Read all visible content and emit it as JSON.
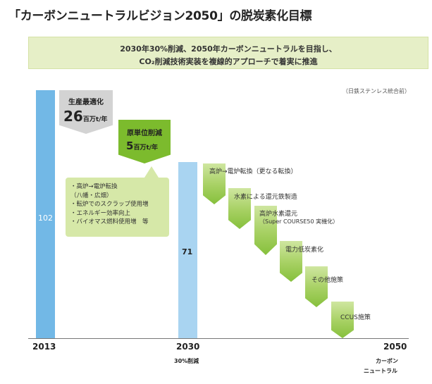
{
  "title": "「カーボンニュートラルビジョン2050」の脱炭素化目標",
  "banner": {
    "line1": "2030年30%削減、2050年カーボンニュートラルを目指し、",
    "line2": "CO₂削減技術実装を複線的アプローチで着実に推進"
  },
  "source_note": "（日鉄ステンレス統合前）",
  "bars": {
    "y2013": {
      "value": "102"
    },
    "y2030": {
      "value": "71"
    }
  },
  "axis": {
    "x2013": "2013",
    "x2030": "2030",
    "x2030_sub": "30%削減",
    "x2050": "2050",
    "x2050_sub1": "カーボン",
    "x2050_sub2": "ニュートラル"
  },
  "callouts": {
    "production": {
      "title": "生産最適化",
      "value": "26",
      "unit": "百万t/年"
    },
    "unit_reduction": {
      "title": "原単位削減",
      "value": "5",
      "unit": "百万t/年"
    }
  },
  "measures": [
    "・高炉→電炉転換",
    "（八幡・広畑）",
    "・転炉でのスクラップ使用増",
    "・エネルギー効率向上",
    "・バイオマス燃料使用増　等"
  ],
  "steps": [
    {
      "label": "高炉→電炉転換（更なる転換）",
      "sub": ""
    },
    {
      "label": "水素による還元鉄製造",
      "sub": ""
    },
    {
      "label": "高炉水素還元",
      "sub": "（Super COURSE50 実機化）"
    },
    {
      "label": "電力低炭素化",
      "sub": ""
    },
    {
      "label": "その他施策",
      "sub": ""
    },
    {
      "label": "CCUS施策",
      "sub": ""
    }
  ],
  "colors": {
    "bar_2013": "#72b8e6",
    "bar_2030": "#a9d4f1",
    "accent_green": "#7cbb2d",
    "callout_gray": "#d3d3d3",
    "banner_bg": "#e6efc7"
  }
}
